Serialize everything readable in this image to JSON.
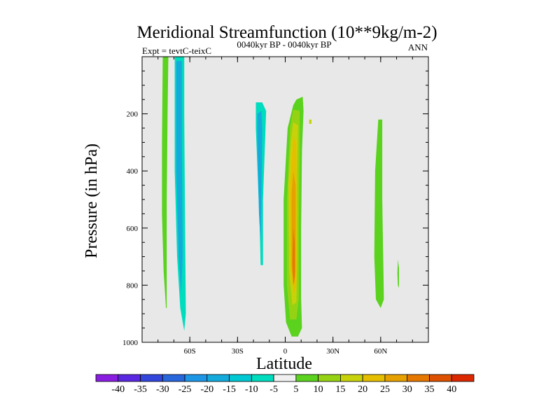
{
  "chart_data": {
    "type": "contour",
    "title": "Meridional Streamfunction (10**9kg/m-2)",
    "subtitle_left": "Expt = tevtC-teixC",
    "subtitle_center": "0040kyr BP - 0040kyr BP",
    "subtitle_right": "ANN",
    "xlabel": "Latitude",
    "ylabel": "Pressure (in hPa)",
    "xlim": [
      -90,
      90
    ],
    "ylim": [
      1000,
      0
    ],
    "x_ticks": [
      {
        "value": -60,
        "label": "60S"
      },
      {
        "value": -30,
        "label": "30S"
      },
      {
        "value": 0,
        "label": "0"
      },
      {
        "value": 30,
        "label": "30N"
      },
      {
        "value": 60,
        "label": "60N"
      }
    ],
    "y_ticks": [
      {
        "value": 200,
        "label": "200"
      },
      {
        "value": 400,
        "label": "400"
      },
      {
        "value": 600,
        "label": "600"
      },
      {
        "value": 800,
        "label": "800"
      },
      {
        "value": 1000,
        "label": "1000"
      }
    ],
    "background_color": "#e8e8e8",
    "colorbar": {
      "labels": [
        "-40",
        "-35",
        "-30",
        "-25",
        "-20",
        "-15",
        "-10",
        "-5",
        "5",
        "10",
        "15",
        "20",
        "25",
        "30",
        "35",
        "40"
      ],
      "colors": [
        "#8a1ee0",
        "#5a28e0",
        "#3246dc",
        "#2866dc",
        "#1e96e6",
        "#14aadc",
        "#00c8d2",
        "#00dcbe",
        "#f0f0f0",
        "#5ad21e",
        "#96d214",
        "#c8d20a",
        "#e6be00",
        "#e6a000",
        "#e67800",
        "#dc5000",
        "#dc2800"
      ]
    },
    "regions": [
      {
        "name": "sh-green-column",
        "value": 5,
        "color": "#5ad21e",
        "points": [
          [
            -77,
            0
          ],
          [
            -73.5,
            0
          ],
          [
            -74,
            200
          ],
          [
            -74.5,
            500
          ],
          [
            -74.5,
            750
          ],
          [
            -74.5,
            880
          ],
          [
            -75,
            880
          ],
          [
            -76.5,
            750
          ],
          [
            -77.5,
            550
          ],
          [
            -77.5,
            300
          ]
        ]
      },
      {
        "name": "sh-cyan-column",
        "value": -10,
        "color": "#00dcbe",
        "points": [
          [
            -69.5,
            0
          ],
          [
            -63.5,
            0
          ],
          [
            -63.5,
            200
          ],
          [
            -63,
            600
          ],
          [
            -62.5,
            900
          ],
          [
            -63.5,
            960
          ],
          [
            -66,
            880
          ],
          [
            -68,
            700
          ],
          [
            -69.5,
            400
          ]
        ]
      },
      {
        "name": "sh-blue-core",
        "value": -15,
        "color": "#14aadc",
        "points": [
          [
            -68.5,
            15
          ],
          [
            -65,
            15
          ],
          [
            -65,
            300
          ],
          [
            -64.5,
            700
          ],
          [
            -65.5,
            830
          ],
          [
            -67,
            700
          ],
          [
            -68.5,
            400
          ]
        ]
      },
      {
        "name": "tropical-cyan-column",
        "value": -10,
        "color": "#00dcbe",
        "points": [
          [
            -18.5,
            160
          ],
          [
            -14.5,
            160
          ],
          [
            -12,
            190
          ],
          [
            -14,
            500
          ],
          [
            -14,
            730
          ],
          [
            -15.5,
            730
          ],
          [
            -16,
            600
          ],
          [
            -18.5,
            250
          ]
        ]
      },
      {
        "name": "tropical-blue-core",
        "value": -15,
        "color": "#14aadc",
        "points": [
          [
            -17.5,
            200
          ],
          [
            -15,
            190
          ],
          [
            -14.5,
            250
          ],
          [
            -15,
            500
          ],
          [
            -15.5,
            650
          ],
          [
            -16.5,
            550
          ],
          [
            -17.5,
            300
          ]
        ]
      },
      {
        "name": "nh-tropical-green",
        "value": 5,
        "color": "#5ad21e",
        "points": [
          [
            7,
            150
          ],
          [
            11,
            140
          ],
          [
            11.5,
            190
          ],
          [
            10.5,
            330
          ],
          [
            10,
            600
          ],
          [
            10,
            850
          ],
          [
            10.5,
            950
          ],
          [
            8,
            980
          ],
          [
            4,
            980
          ],
          [
            0.5,
            930
          ],
          [
            -1,
            800
          ],
          [
            -1,
            500
          ],
          [
            1.5,
            250
          ],
          [
            5,
            170
          ]
        ]
      },
      {
        "name": "nh-tropical-10",
        "value": 10,
        "color": "#96d214",
        "points": [
          [
            5,
            185
          ],
          [
            9,
            190
          ],
          [
            9,
            350
          ],
          [
            8.5,
            600
          ],
          [
            8.5,
            850
          ],
          [
            7,
            920
          ],
          [
            3,
            920
          ],
          [
            1,
            800
          ],
          [
            1,
            500
          ],
          [
            3,
            250
          ]
        ]
      },
      {
        "name": "nh-tropical-15",
        "value": 15,
        "color": "#c8d20a",
        "points": [
          [
            5,
            230
          ],
          [
            8,
            240
          ],
          [
            7.5,
            400
          ],
          [
            7.5,
            700
          ],
          [
            7,
            860
          ],
          [
            4.5,
            870
          ],
          [
            2.5,
            750
          ],
          [
            2,
            450
          ],
          [
            3.5,
            300
          ]
        ]
      },
      {
        "name": "nh-tropical-20",
        "value": 20,
        "color": "#e6be00",
        "points": [
          [
            5,
            280
          ],
          [
            7,
            300
          ],
          [
            7,
            500
          ],
          [
            7,
            800
          ],
          [
            5.5,
            830
          ],
          [
            3.5,
            750
          ],
          [
            3,
            450
          ]
        ]
      },
      {
        "name": "nh-tropical-25",
        "value": 25,
        "color": "#e6a000",
        "points": [
          [
            5,
            400
          ],
          [
            6.5,
            450
          ],
          [
            6.5,
            750
          ],
          [
            5.5,
            800
          ],
          [
            4,
            740
          ],
          [
            4,
            480
          ]
        ]
      },
      {
        "name": "nh-tropical-30",
        "value": 30,
        "color": "#e67800",
        "points": [
          [
            5,
            600
          ],
          [
            6,
            650
          ],
          [
            6,
            770
          ],
          [
            5,
            800
          ],
          [
            4.5,
            720
          ]
        ]
      },
      {
        "name": "nh-midlat-green",
        "value": 5,
        "color": "#5ad21e",
        "points": [
          [
            58.5,
            220
          ],
          [
            61,
            220
          ],
          [
            61,
            500
          ],
          [
            62,
            850
          ],
          [
            60,
            880
          ],
          [
            57,
            850
          ],
          [
            56,
            700
          ],
          [
            56.5,
            400
          ]
        ]
      },
      {
        "name": "nh-small-green",
        "value": 5,
        "color": "#5ad21e",
        "points": [
          [
            70.8,
            710
          ],
          [
            71.5,
            740
          ],
          [
            71.5,
            810
          ],
          [
            70.8,
            800
          ],
          [
            70.5,
            760
          ]
        ]
      },
      {
        "name": "nh-dot-yellow",
        "value": 15,
        "color": "#c8d20a",
        "points": [
          [
            15,
            220
          ],
          [
            16.5,
            220
          ],
          [
            16.5,
            235
          ],
          [
            15,
            235
          ]
        ]
      }
    ]
  }
}
